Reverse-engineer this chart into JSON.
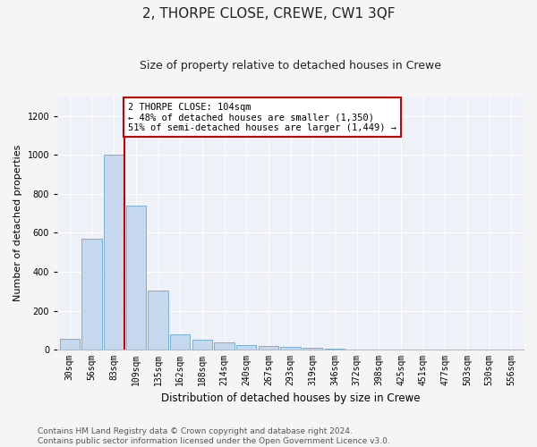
{
  "title": "2, THORPE CLOSE, CREWE, CW1 3QF",
  "subtitle": "Size of property relative to detached houses in Crewe",
  "xlabel": "Distribution of detached houses by size in Crewe",
  "ylabel": "Number of detached properties",
  "bar_color": "#c5d8ee",
  "bar_edge_color": "#7aafd4",
  "background_color": "#eef2f8",
  "grid_color": "#ffffff",
  "categories": [
    "30sqm",
    "56sqm",
    "83sqm",
    "109sqm",
    "135sqm",
    "162sqm",
    "188sqm",
    "214sqm",
    "240sqm",
    "267sqm",
    "293sqm",
    "319sqm",
    "346sqm",
    "372sqm",
    "398sqm",
    "425sqm",
    "451sqm",
    "477sqm",
    "503sqm",
    "530sqm",
    "556sqm"
  ],
  "values": [
    55,
    570,
    1000,
    740,
    305,
    80,
    50,
    35,
    25,
    18,
    15,
    8,
    7,
    0,
    0,
    0,
    0,
    0,
    0,
    0,
    0
  ],
  "ylim": [
    0,
    1300
  ],
  "yticks": [
    0,
    200,
    400,
    600,
    800,
    1000,
    1200
  ],
  "annotation_text": "2 THORPE CLOSE: 104sqm\n← 48% of detached houses are smaller (1,350)\n51% of semi-detached houses are larger (1,449) →",
  "annotation_box_color": "#ffffff",
  "annotation_box_edge": "#cc0000",
  "vline_color": "#cc0000",
  "vline_x_index": 2.5,
  "footer": "Contains HM Land Registry data © Crown copyright and database right 2024.\nContains public sector information licensed under the Open Government Licence v3.0.",
  "title_fontsize": 11,
  "subtitle_fontsize": 9,
  "annotation_fontsize": 7.5,
  "ylabel_fontsize": 8,
  "xlabel_fontsize": 8.5,
  "footer_fontsize": 6.5,
  "tick_fontsize": 7
}
